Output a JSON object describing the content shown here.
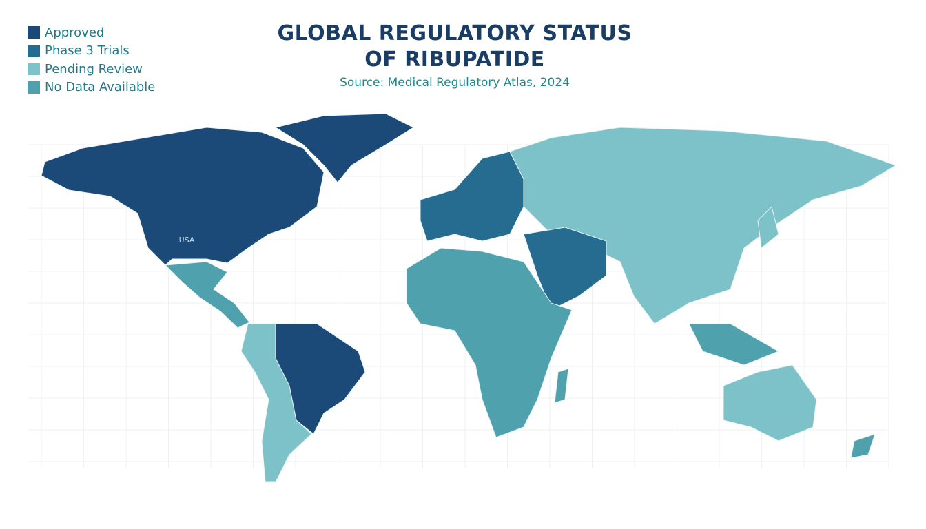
{
  "header": {
    "title": "GLOBAL REGULATORY STATUS OF RIBUPATIDE",
    "source": "Source: Medical Regulatory Atlas, 2024"
  },
  "legend": [
    {
      "label": "Approved",
      "color": "#1b4a78"
    },
    {
      "label": "Phase 3 Trials",
      "color": "#266b90"
    },
    {
      "label": "Pending Review",
      "color": "#7cc2c8"
    },
    {
      "label": "No Data Available",
      "color": "#4fa2ad"
    }
  ],
  "map": {
    "labels": [
      {
        "text": "USA"
      }
    ]
  }
}
